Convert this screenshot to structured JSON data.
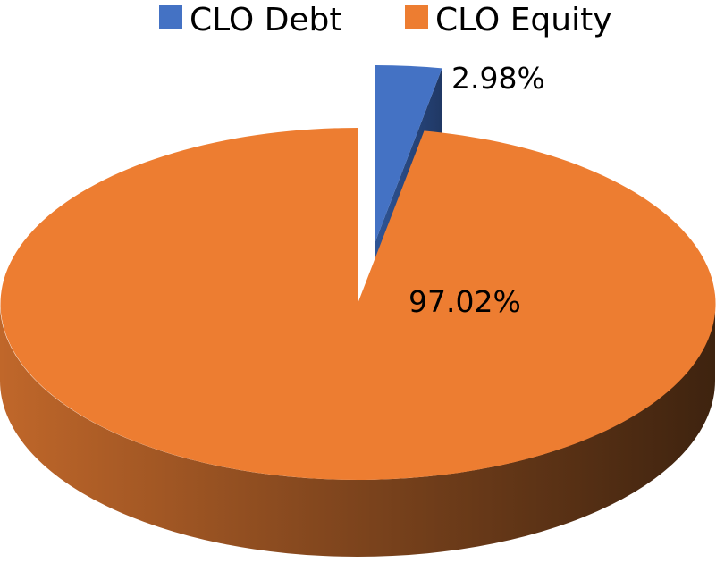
{
  "chart_data": {
    "type": "pie",
    "style": "3d-exploded",
    "title": "",
    "legend_position": "top",
    "series": [
      {
        "name": "CLO Debt",
        "value": 2.98,
        "label": "2.98%",
        "color": "#4472c4"
      },
      {
        "name": "CLO Equity",
        "value": 97.02,
        "label": "97.02%",
        "color": "#ed7d31"
      }
    ]
  }
}
